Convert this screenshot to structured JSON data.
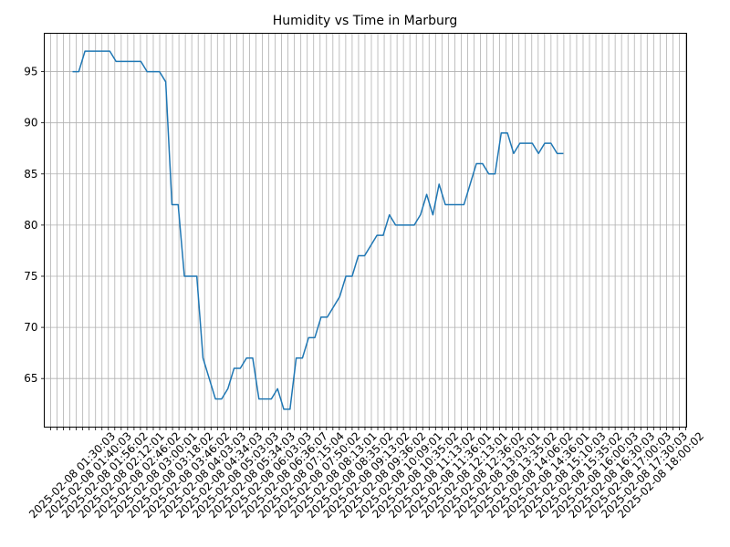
{
  "chart_data": {
    "type": "line",
    "title": "Humidity vs Time in Marburg",
    "xlabel": "",
    "ylabel": "",
    "ylim": [
      60.25,
      98.75
    ],
    "yticks": [
      65,
      70,
      75,
      80,
      85,
      90,
      95
    ],
    "grid": true,
    "line_color": "#1f77b4",
    "xtick_labels": [
      "2025-02-08 01:30:03",
      "2025-02-08 01:40:03",
      "2025-02-08 01:56:02",
      "2025-02-08 02:12:01",
      "2025-02-08 02:46:02",
      "2025-02-08 03:00:01",
      "2025-02-08 03:18:02",
      "2025-02-08 03:46:02",
      "2025-02-08 04:03:03",
      "2025-02-08 04:34:03",
      "2025-02-08 05:03:03",
      "2025-02-08 05:34:03",
      "2025-02-08 06:03:03",
      "2025-02-08 06:36:07",
      "2025-02-08 07:15:04",
      "2025-02-08 07:50:02",
      "2025-02-08 08:13:01",
      "2025-02-08 08:35:02",
      "2025-02-08 09:13:02",
      "2025-02-08 09:36:02",
      "2025-02-08 10:09:01",
      "2025-02-08 10:35:02",
      "2025-02-08 11:13:02",
      "2025-02-08 11:36:01",
      "2025-02-08 12:13:01",
      "2025-02-08 12:36:02",
      "2025-02-08 13:03:01",
      "2025-02-08 13:35:02",
      "2025-02-08 14:06:02",
      "2025-02-08 14:36:01",
      "2025-02-08 15:10:03",
      "2025-02-08 15:35:02",
      "2025-02-08 16:00:03",
      "2025-02-08 16:30:03",
      "2025-02-08 17:00:03",
      "2025-02-08 17:30:03",
      "2025-02-08 18:00:02"
    ],
    "series": [
      {
        "values": [
          95,
          95,
          97,
          97,
          97,
          97,
          97,
          96,
          96,
          96,
          96,
          96,
          95,
          95,
          95,
          94,
          82,
          82,
          75,
          75,
          75,
          67,
          65,
          63,
          63,
          64,
          66,
          66,
          67,
          67,
          63,
          63,
          63,
          64,
          62,
          62,
          67,
          67,
          69,
          69,
          71,
          71,
          72,
          73,
          75,
          75,
          77,
          77,
          78,
          79,
          79,
          81,
          80,
          80,
          80,
          80,
          81,
          83,
          81,
          84,
          82,
          82,
          82,
          82,
          84,
          86,
          86,
          85,
          85,
          89,
          89,
          87,
          88,
          88,
          88,
          87,
          88,
          88,
          87,
          87
        ]
      }
    ]
  }
}
